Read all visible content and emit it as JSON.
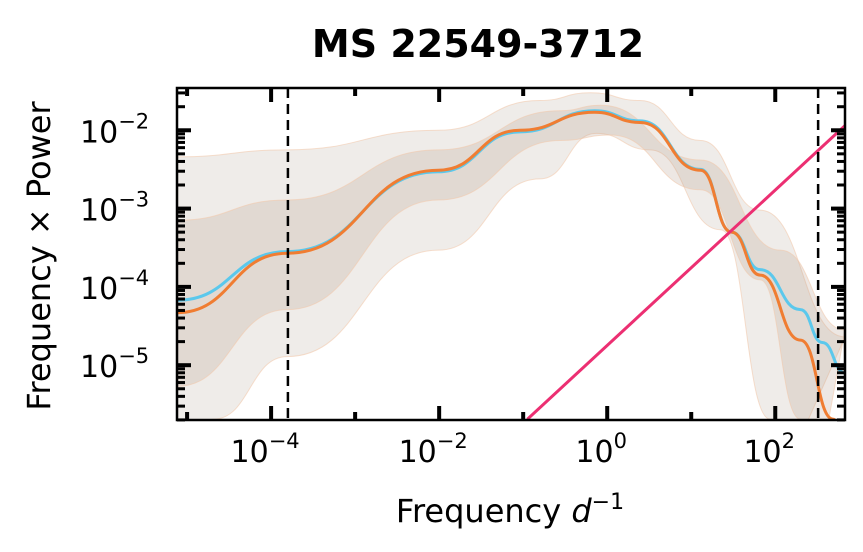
{
  "chart_data": {
    "type": "line",
    "title": "MS 22549-3712",
    "xlabel": "Frequency",
    "xlabel_unit_base": "d",
    "xlabel_unit_exp": "−1",
    "ylabel": "Frequency × Power",
    "xscale": "log",
    "yscale": "log",
    "xlim_log10": [
      -5.12,
      2.83
    ],
    "ylim_log10": [
      -5.7,
      -1.46
    ],
    "x_ticks": [
      {
        "base": "10",
        "exp": "−4",
        "log": -4
      },
      {
        "base": "10",
        "exp": "−2",
        "log": -2
      },
      {
        "base": "10",
        "exp": "0",
        "log": 0
      },
      {
        "base": "10",
        "exp": "2",
        "log": 2
      }
    ],
    "y_ticks": [
      {
        "base": "10",
        "exp": "−2",
        "log": -2
      },
      {
        "base": "10",
        "exp": "−3",
        "log": -3
      },
      {
        "base": "10",
        "exp": "−4",
        "log": -4
      },
      {
        "base": "10",
        "exp": "−5",
        "log": -5
      }
    ],
    "vlines_log10": [
      -3.8,
      2.51
    ],
    "bands": [
      {
        "name": "outer-band",
        "color": "#b8a89a",
        "opacity": 0.22,
        "upper": [
          [
            -5.12,
            -2.34
          ],
          [
            -3.81,
            -2.25
          ],
          [
            -2.01,
            -2.0
          ],
          [
            -0.8,
            -1.62
          ],
          [
            -0.2,
            -1.52
          ],
          [
            0.39,
            -1.62
          ],
          [
            1.11,
            -2.13
          ],
          [
            1.82,
            -3.02
          ],
          [
            2.83,
            -4.64
          ]
        ],
        "lower": [
          [
            -5.12,
            -6.3
          ],
          [
            -4.69,
            -5.69
          ],
          [
            -3.81,
            -4.89
          ],
          [
            -2.01,
            -3.53
          ],
          [
            -0.8,
            -2.62
          ],
          [
            -0.13,
            -2.04
          ],
          [
            0.51,
            -2.25
          ],
          [
            1.35,
            -3.27
          ],
          [
            1.94,
            -5.69
          ],
          [
            2.06,
            -6.5
          ]
        ]
      },
      {
        "name": "inner-band",
        "color": "#b8a090",
        "opacity": 0.25,
        "upper": [
          [
            -5.12,
            -3.15
          ],
          [
            -3.81,
            -2.89
          ],
          [
            -2.01,
            -2.25
          ],
          [
            -0.56,
            -1.75
          ],
          [
            -0.08,
            -1.68
          ],
          [
            1.11,
            -2.38
          ],
          [
            2.06,
            -3.53
          ],
          [
            2.83,
            -4.55
          ]
        ],
        "lower": [
          [
            -5.12,
            -5.27
          ],
          [
            -3.81,
            -4.29
          ],
          [
            -2.01,
            -2.89
          ],
          [
            -0.56,
            -2.13
          ],
          [
            0.04,
            -2.06
          ],
          [
            1.11,
            -2.76
          ],
          [
            1.82,
            -3.91
          ],
          [
            2.3,
            -5.69
          ],
          [
            2.5,
            -6.5
          ]
        ]
      }
    ],
    "series": [
      {
        "name": "model-blue",
        "color": "#5bc8ec",
        "points_log10": [
          [
            -5.12,
            -4.17
          ],
          [
            -3.81,
            -3.55
          ],
          [
            -2.01,
            -2.53
          ],
          [
            -1.04,
            -2.02
          ],
          [
            -0.15,
            -1.75
          ],
          [
            0.39,
            -1.88
          ],
          [
            1.11,
            -2.5
          ],
          [
            1.48,
            -3.3
          ],
          [
            1.82,
            -3.78
          ],
          [
            2.3,
            -4.29
          ],
          [
            2.56,
            -4.71
          ],
          [
            2.83,
            -5.1
          ]
        ]
      },
      {
        "name": "model-orange",
        "color": "#f07d32",
        "points_log10": [
          [
            -5.12,
            -4.33
          ],
          [
            -3.81,
            -3.57
          ],
          [
            -2.01,
            -2.51
          ],
          [
            -1.04,
            -2.0
          ],
          [
            -0.15,
            -1.77
          ],
          [
            0.39,
            -1.9
          ],
          [
            1.11,
            -2.51
          ],
          [
            1.48,
            -3.3
          ],
          [
            1.82,
            -3.85
          ],
          [
            2.3,
            -4.68
          ],
          [
            2.69,
            -5.69
          ],
          [
            2.83,
            -6.0
          ]
        ]
      },
      {
        "name": "white-noise",
        "color": "#ec2f72",
        "points_log10": [
          [
            -0.95,
            -5.69
          ],
          [
            2.83,
            -1.94
          ]
        ]
      }
    ]
  }
}
